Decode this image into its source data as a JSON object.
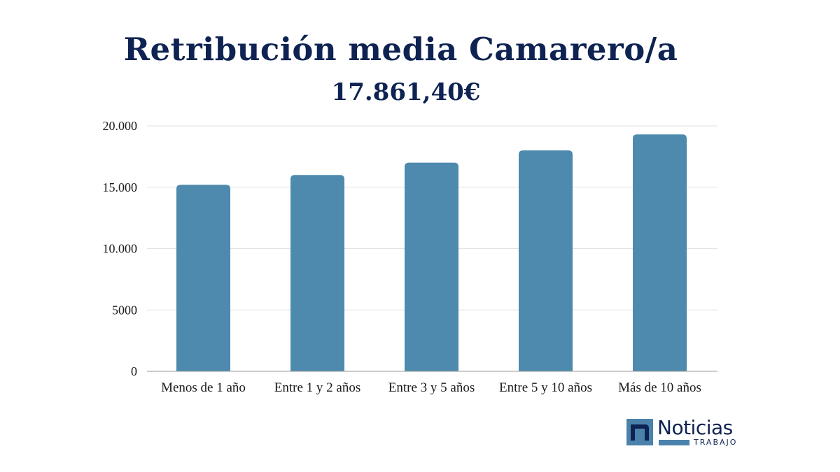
{
  "chart_data": {
    "type": "bar",
    "title": "Retribución media Camarero/a",
    "subtitle": "17.861,40€",
    "categories": [
      "Menos de 1 año",
      "Entre 1 y 2 años",
      "Entre 3 y 5 años",
      "Entre 5 y 10 años",
      "Más de 10 años"
    ],
    "values": [
      15200,
      16000,
      17000,
      18000,
      19300
    ],
    "ylim": [
      0,
      20000
    ],
    "yticks": [
      0,
      5000,
      10000,
      15000,
      20000
    ],
    "ytick_labels": [
      "0",
      "5000",
      "10.000",
      "15.000",
      "20.000"
    ],
    "grid": true,
    "bar_color": "#4d8aae"
  },
  "logo": {
    "brand": "Noticias",
    "sub": "TRABAJO",
    "color": "#0e2352",
    "accent": "#4a82ab"
  }
}
